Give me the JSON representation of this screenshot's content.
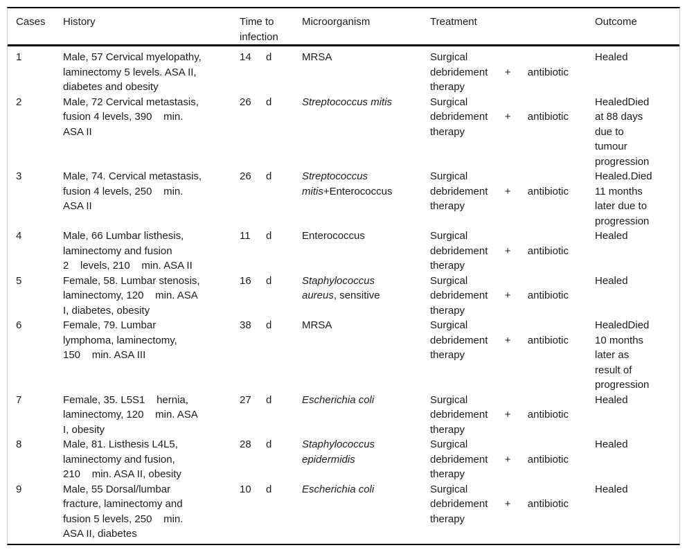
{
  "colors": {
    "rule": "#000000",
    "frame": "#c9c9c9",
    "text": "#1b1b1b"
  },
  "table": {
    "columns": [
      "Cases",
      "History",
      "Time to infection",
      "Microorganism",
      "Treatment",
      "Outcome"
    ],
    "rows": [
      {
        "case": "1",
        "history": "Male, 57 Cervical myelopathy,\nlaminectomy 5 levels. ASA II,\ndiabetes and obesity",
        "time_value": "14",
        "time_unit": "d",
        "microorganism": {
          "italic": "",
          "regular": "MRSA"
        },
        "treatment": {
          "first": "Surgical",
          "justified": [
            "debridement",
            "+",
            "antibiotic"
          ],
          "last": "therapy"
        },
        "outcome": "Healed"
      },
      {
        "case": "2",
        "history": "Male, 72 Cervical metastasis,\nfusion 4 levels, 390    min.\nASA II",
        "time_value": "26",
        "time_unit": "d",
        "microorganism": {
          "italic": "Streptococcus mitis",
          "regular": ""
        },
        "treatment": {
          "first": "Surgical",
          "justified": [
            "debridement",
            "+",
            "antibiotic"
          ],
          "last": "therapy"
        },
        "outcome": "HealedDied\nat 88 days\ndue to\ntumour\nprogression"
      },
      {
        "case": "3",
        "history": "Male, 74. Cervical metastasis,\nfusion 4 levels, 250    min.\nASA II",
        "time_value": "26",
        "time_unit": "d",
        "microorganism": {
          "italic": "Streptococcus mitis",
          "regular": "+Enterococcus"
        },
        "treatment": {
          "first": "Surgical",
          "justified": [
            "debridement",
            "+",
            "antibiotic"
          ],
          "last": "therapy"
        },
        "outcome": "Healed.Died\n11 months\nlater due to\nprogression"
      },
      {
        "case": "4",
        "history": "Male, 66 Lumbar listhesis,\nlaminectomy and fusion\n2    levels, 210    min. ASA II",
        "time_value": "11",
        "time_unit": "d",
        "microorganism": {
          "italic": "",
          "regular": "Enterococcus"
        },
        "treatment": {
          "first": "Surgical",
          "justified": [
            "debridement",
            "+",
            "antibiotic"
          ],
          "last": "therapy"
        },
        "outcome": "Healed"
      },
      {
        "case": "5",
        "history": "Female, 58. Lumbar stenosis,\nlaminectomy, 120    min. ASA\nI, diabetes, obesity",
        "time_value": "16",
        "time_unit": "d",
        "microorganism": {
          "italic": "Staphylococcus aureus",
          "regular": ", sensitive"
        },
        "treatment": {
          "first": "Surgical",
          "justified": [
            "debridement",
            "+",
            "antibiotic"
          ],
          "last": "therapy"
        },
        "outcome": "Healed"
      },
      {
        "case": "6",
        "history": "Female, 79. Lumbar\nlymphoma, laminectomy,\n150    min. ASA III",
        "time_value": "38",
        "time_unit": "d",
        "microorganism": {
          "italic": "",
          "regular": "MRSA"
        },
        "treatment": {
          "first": "Surgical",
          "justified": [
            "debridement",
            "+",
            "antibiotic"
          ],
          "last": "therapy"
        },
        "outcome": "HealedDied\n10 months\nlater as\nresult of\nprogression"
      },
      {
        "case": "7",
        "history": "Female, 35. L5S1    hernia,\nlaminectomy, 120    min. ASA\nI, obesity",
        "time_value": "27",
        "time_unit": "d",
        "microorganism": {
          "italic": "Escherichia coli",
          "regular": ""
        },
        "treatment": {
          "first": "Surgical",
          "justified": [
            "debridement",
            "+",
            "antibiotic"
          ],
          "last": "therapy"
        },
        "outcome": "Healed"
      },
      {
        "case": "8",
        "history": "Male, 81. Listhesis L4L5,\nlaminectomy and fusion,\n210    min. ASA II, obesity",
        "time_value": "28",
        "time_unit": "d",
        "microorganism": {
          "italic": "Staphylococcus epidermidis",
          "regular": ""
        },
        "treatment": {
          "first": "Surgical",
          "justified": [
            "debridement",
            "+",
            "antibiotic"
          ],
          "last": "therapy"
        },
        "outcome": "Healed"
      },
      {
        "case": "9",
        "history": "Male, 55 Dorsal/lumbar\nfracture, laminectomy and\nfusion 5 levels, 250    min.\nASA II, diabetes",
        "time_value": "10",
        "time_unit": "d",
        "microorganism": {
          "italic": "Escherichia coli",
          "regular": ""
        },
        "treatment": {
          "first": "Surgical",
          "justified": [
            "debridement",
            "+",
            "antibiotic"
          ],
          "last": "therapy"
        },
        "outcome": "Healed"
      }
    ]
  }
}
